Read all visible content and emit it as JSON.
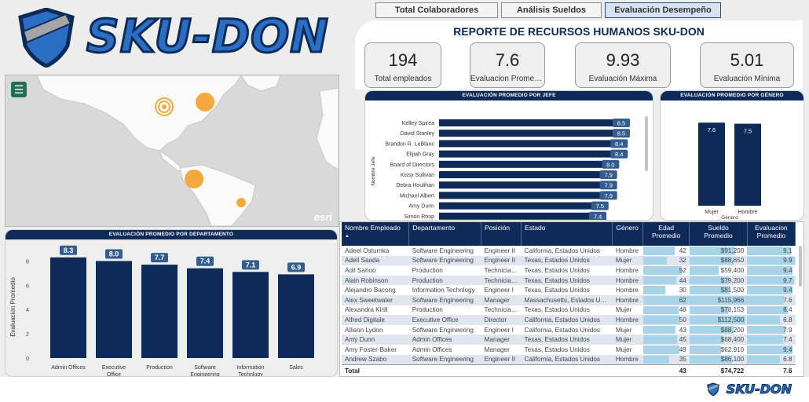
{
  "logo": {
    "text": "SKU-DON",
    "small_text": "SKU-DON"
  },
  "tabs": [
    {
      "label": "Total Colaboradores",
      "active": false
    },
    {
      "label": "Análisis Sueldos",
      "active": false
    },
    {
      "label": "Evaluación Desempeño",
      "active": true
    }
  ],
  "header": {
    "title": "REPORTE DE RECURSOS HUMANOS SKU-DON"
  },
  "kpis": [
    {
      "value": "194",
      "label": "Total empleados"
    },
    {
      "value": "7.6",
      "label": "Evaluacion Promedio"
    },
    {
      "value": "9.93",
      "label": "Evaluación Máxima"
    },
    {
      "value": "5.01",
      "label": "Evaluación Mínima"
    }
  ],
  "map": {
    "menu_icon": "hamburger-icon",
    "attribution": "esri",
    "bubble_color": "#f5a93c"
  },
  "colors": {
    "navy": "#0d2a58",
    "accent": "#2b6fc4",
    "data_bar": "#a8d3e8"
  },
  "chart_data": [
    {
      "type": "bar",
      "orientation": "horizontal",
      "title": "EVALUACIÓN PROMEDIO POR JEFE",
      "ylabel": "Nombre Jefe",
      "categories": [
        "Kelley Spirea",
        "David Stanley",
        "Brandon R. LeBlanc",
        "Elijiah Gray",
        "Board of Directors",
        "Kissy Sullivan",
        "Debra Houlihan",
        "Michael Albert",
        "Amy Dunn",
        "Simon Roup"
      ],
      "values": [
        8.5,
        8.5,
        8.4,
        8.4,
        8.0,
        7.9,
        7.9,
        7.9,
        7.5,
        7.4
      ],
      "xlim": [
        0,
        9.2
      ]
    },
    {
      "type": "bar",
      "title": "EVALUACIÓN PROMEDIO POR GÉNERO",
      "xlabel": "Género",
      "categories": [
        "Mujer",
        "Hombre"
      ],
      "values": [
        7.6,
        7.5
      ],
      "ylim": [
        0,
        7.9
      ]
    },
    {
      "type": "bar",
      "title": "EVALUACIÓN PROMEDIO POR DEPARTAMENTO",
      "ylabel": "Evaluacion Promedio",
      "categories": [
        "Admin Offices",
        "Executive Office",
        "Production",
        "Software Engineering",
        "Information Technlogy",
        "Sales"
      ],
      "values": [
        8.3,
        8.0,
        7.7,
        7.4,
        7.1,
        6.9
      ],
      "ylim": [
        0,
        9
      ],
      "yticks": [
        0,
        2,
        4,
        6,
        8
      ]
    }
  ],
  "table": {
    "headers": [
      "Nombre Empleado",
      "Departamento",
      "Posición",
      "Estado",
      "Género",
      "Edad Promedio",
      "Sueldo Promedio",
      "Evaluacion Promedio"
    ],
    "max_edad": 62,
    "max_sueldo": 115966,
    "max_eval": 10,
    "rows": [
      [
        "Adeel Osturnka",
        "Software Engineering",
        "Engineer II",
        "California, Estados Unidos",
        "Hombre",
        "42",
        "$91,200",
        "9.1"
      ],
      [
        "Adell Saada",
        "Software Engineering",
        "Engineer II",
        "Texas, Estados Unidos",
        "Mujer",
        "32",
        "$88,650",
        "9.9"
      ],
      [
        "Adil Sahoo",
        "Production",
        "Technician...",
        "Texas, Estados Unidos",
        "Hombre",
        "52",
        "$59,400",
        "9.4"
      ],
      [
        "Alain Robinson",
        "Production",
        "Technician...",
        "Texas, Estados Unidos",
        "Hombre",
        "44",
        "$79,200",
        "9.7"
      ],
      [
        "Alejandro Bacong",
        "Information Technlogy",
        "Engineer I",
        "Texas, Estados Unidos",
        "Hombre",
        "30",
        "$81,500",
        "9.4"
      ],
      [
        "Alex Sweetwater",
        "Software Engineering",
        "Manager",
        "Massachusetts, Estados Uni...",
        "Hombre",
        "62",
        "$115,966",
        "7.6"
      ],
      [
        "Alexandra Kirill",
        "Production",
        "Technician...",
        "Texas, Estados Unidos",
        "Mujer",
        "48",
        "$78,153",
        "8.4"
      ],
      [
        "Alfred Digitale",
        "Executive Office",
        "Director",
        "California, Estados Unidos",
        "Hombre",
        "50",
        "$112,500",
        "6.8"
      ],
      [
        "Allison Lydon",
        "Software Engineering",
        "Engineer I",
        "California, Estados Unidos",
        "Mujer",
        "43",
        "$88,200",
        "7.9"
      ],
      [
        "Amy Dunn",
        "Admin Offices",
        "Manager",
        "Texas, Estados Unidos",
        "Mujer",
        "45",
        "$68,400",
        "7.4"
      ],
      [
        "Amy Foster-Baker",
        "Admin Offices",
        "Manager",
        "Texas, Estados Unidos",
        "Mujer",
        "49",
        "$62,910",
        "9.4"
      ],
      [
        "Andrew Szabo",
        "Software Engineering",
        "Engineer II",
        "California, Estados Unidos",
        "Hombre",
        "35",
        "$86,100",
        "6.8"
      ]
    ],
    "total": {
      "label": "Total",
      "edad": "43",
      "sueldo": "$74,722",
      "eval": "7.6"
    }
  }
}
